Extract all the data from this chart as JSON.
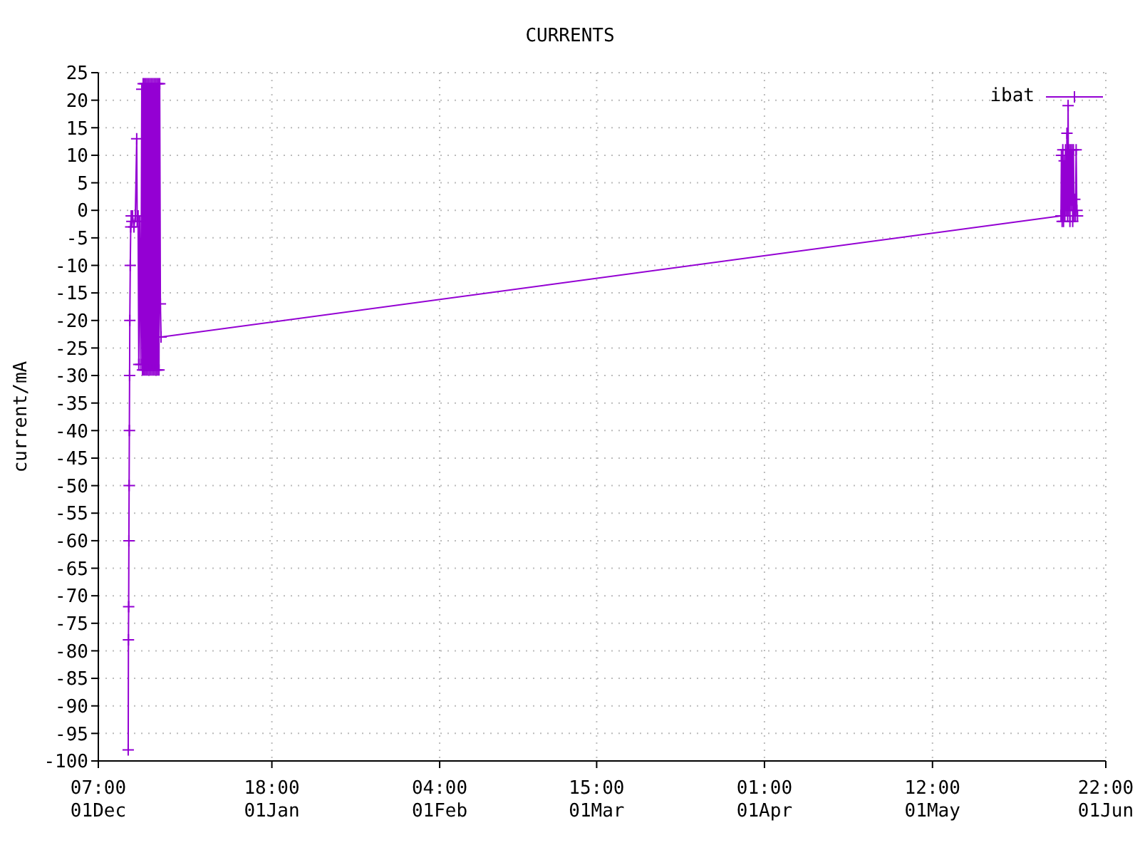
{
  "chart_data": {
    "type": "line",
    "title": "CURRENTS",
    "ylabel": "current/mA",
    "x": [
      "2000-12-06T17:00",
      "2000-12-06T18:00",
      "2000-12-06T19:00",
      "2000-12-06T20:00",
      "2000-12-06T21:00",
      "2000-12-06T22:00",
      "2000-12-06T23:00",
      "2000-12-07T00:00",
      "2000-12-07T02:00",
      "2000-12-07T04:00",
      "2000-12-07T06:00",
      "2000-12-07T09:00",
      "2000-12-07T12:00",
      "2000-12-07T18:00",
      "2000-12-08T00:00",
      "2000-12-08T06:00",
      "2000-12-08T08:00",
      "2000-12-08T12:00",
      "2000-12-08T15:00",
      "2000-12-08T19:00",
      "2000-12-09T00:00",
      "2000-12-09T04:00",
      "2000-12-09T07:00",
      "2000-12-09T10:00",
      "2000-12-09T13:00",
      "2000-12-09T16:00",
      "2000-12-09T19:00",
      "2000-12-09T22:00",
      "2000-12-10T01:00",
      "2000-12-10T04:00",
      "2000-12-10T07:00",
      "2000-12-10T10:00",
      "2000-12-10T13:00",
      "2000-12-10T16:00",
      "2000-12-10T19:00",
      "2000-12-10T22:00",
      "2000-12-11T01:00",
      "2000-12-11T04:00",
      "2000-12-11T07:00",
      "2000-12-11T10:00",
      "2000-12-11T13:00",
      "2000-12-11T16:00",
      "2000-12-11T19:00",
      "2000-12-11T22:00",
      "2000-12-12T01:00",
      "2000-12-12T04:00",
      "2000-12-12T07:00",
      "2000-12-12T10:00",
      "2000-12-12T13:00",
      "2000-12-12T16:00",
      "2001-05-24T19:00",
      "2001-05-24T21:00",
      "2001-05-25T00:00",
      "2001-05-25T03:00",
      "2001-05-25T06:00",
      "2001-05-25T09:00",
      "2001-05-25T12:00",
      "2001-05-25T15:00",
      "2001-05-25T18:00",
      "2001-05-25T21:00",
      "2001-05-26T00:00",
      "2001-05-26T02:00",
      "2001-05-26T04:00",
      "2001-05-26T07:00",
      "2001-05-26T10:00",
      "2001-05-26T13:00",
      "2001-05-26T16:00",
      "2001-05-26T19:00",
      "2001-05-26T22:00",
      "2001-05-27T01:00",
      "2001-05-27T04:00",
      "2001-05-27T07:00",
      "2001-05-27T10:00",
      "2001-05-27T13:00",
      "2001-05-27T16:00",
      "2001-05-27T19:00"
    ],
    "series": [
      {
        "name": "ibat",
        "color": "#9400d3",
        "values": [
          -98,
          -78,
          -72,
          -60,
          -50,
          -40,
          -30,
          -20,
          -10,
          -3,
          -1,
          -2,
          -1,
          -3,
          -1,
          13,
          -2,
          -1,
          -28,
          -2,
          -28,
          22,
          -29,
          23,
          -29,
          23,
          -29,
          23,
          -29,
          23,
          -29,
          23,
          -29,
          23,
          -29,
          23,
          -29,
          23,
          -29,
          23,
          -29,
          23,
          -29,
          23,
          -29,
          23,
          -29,
          23,
          -17,
          -23,
          -1,
          10,
          -2,
          11,
          -2,
          9,
          -1,
          11,
          0,
          14,
          -1,
          19,
          0,
          11,
          -2,
          11,
          1,
          11,
          -2,
          11,
          -1,
          2,
          -1,
          11,
          0,
          -1
        ]
      }
    ],
    "xlim": [
      "2000-12-01T07:00",
      "2001-06-01T22:00"
    ],
    "xticks": [
      {
        "value": "2000-12-01T07:00",
        "label": "07:00\n01Dec"
      },
      {
        "value": "2001-01-01T18:00",
        "label": "18:00\n01Jan"
      },
      {
        "value": "2001-02-01T04:00",
        "label": "04:00\n01Feb"
      },
      {
        "value": "2001-03-01T15:00",
        "label": "15:00\n01Mar"
      },
      {
        "value": "2001-04-01T01:00",
        "label": "01:00\n01Apr"
      },
      {
        "value": "2001-05-01T12:00",
        "label": "12:00\n01May"
      },
      {
        "value": "2001-06-01T22:00",
        "label": "22:00\n01Jun"
      }
    ],
    "ylim": [
      -100,
      25
    ],
    "yticks": [
      -100,
      -95,
      -90,
      -85,
      -80,
      -75,
      -70,
      -65,
      -60,
      -55,
      -50,
      -45,
      -40,
      -35,
      -30,
      -25,
      -20,
      -15,
      -10,
      -5,
      0,
      5,
      10,
      15,
      20,
      25
    ],
    "grid": true,
    "legend": "top right",
    "marker": "cross",
    "line_style": "solid"
  }
}
